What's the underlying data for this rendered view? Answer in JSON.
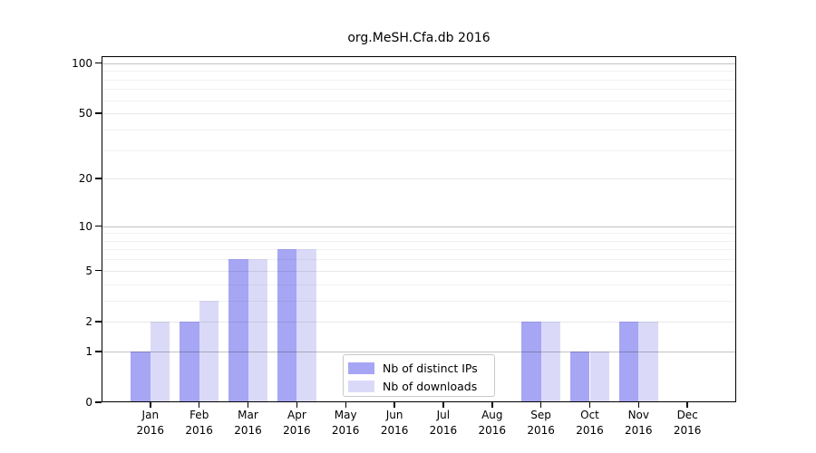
{
  "chart_data": {
    "type": "bar",
    "title": "org.MeSH.Cfa.db 2016",
    "categories": [
      {
        "month": "Jan",
        "year": "2016"
      },
      {
        "month": "Feb",
        "year": "2016"
      },
      {
        "month": "Mar",
        "year": "2016"
      },
      {
        "month": "Apr",
        "year": "2016"
      },
      {
        "month": "May",
        "year": "2016"
      },
      {
        "month": "Jun",
        "year": "2016"
      },
      {
        "month": "Jul",
        "year": "2016"
      },
      {
        "month": "Aug",
        "year": "2016"
      },
      {
        "month": "Sep",
        "year": "2016"
      },
      {
        "month": "Oct",
        "year": "2016"
      },
      {
        "month": "Nov",
        "year": "2016"
      },
      {
        "month": "Dec",
        "year": "2016"
      }
    ],
    "series": [
      {
        "name": "Nb of distinct IPs",
        "color": "#a6a6f5",
        "values": [
          1,
          2,
          6,
          7,
          0,
          0,
          0,
          0,
          2,
          1,
          2,
          0
        ]
      },
      {
        "name": "Nb of downloads",
        "color": "#dadaf8",
        "values": [
          2,
          3,
          6,
          7,
          0,
          0,
          0,
          0,
          2,
          1,
          2,
          0
        ]
      }
    ],
    "yscale": "log1p",
    "ylim": [
      0,
      110
    ],
    "yticks": [
      0,
      1,
      2,
      5,
      10,
      20,
      50,
      100
    ],
    "decade_gridlines": [
      1,
      10,
      100
    ],
    "minor_gridlines": [
      3,
      4,
      6,
      7,
      8,
      9,
      30,
      40,
      60,
      70,
      80,
      90
    ],
    "grid": true,
    "legend_position": "inside-lower-center"
  }
}
